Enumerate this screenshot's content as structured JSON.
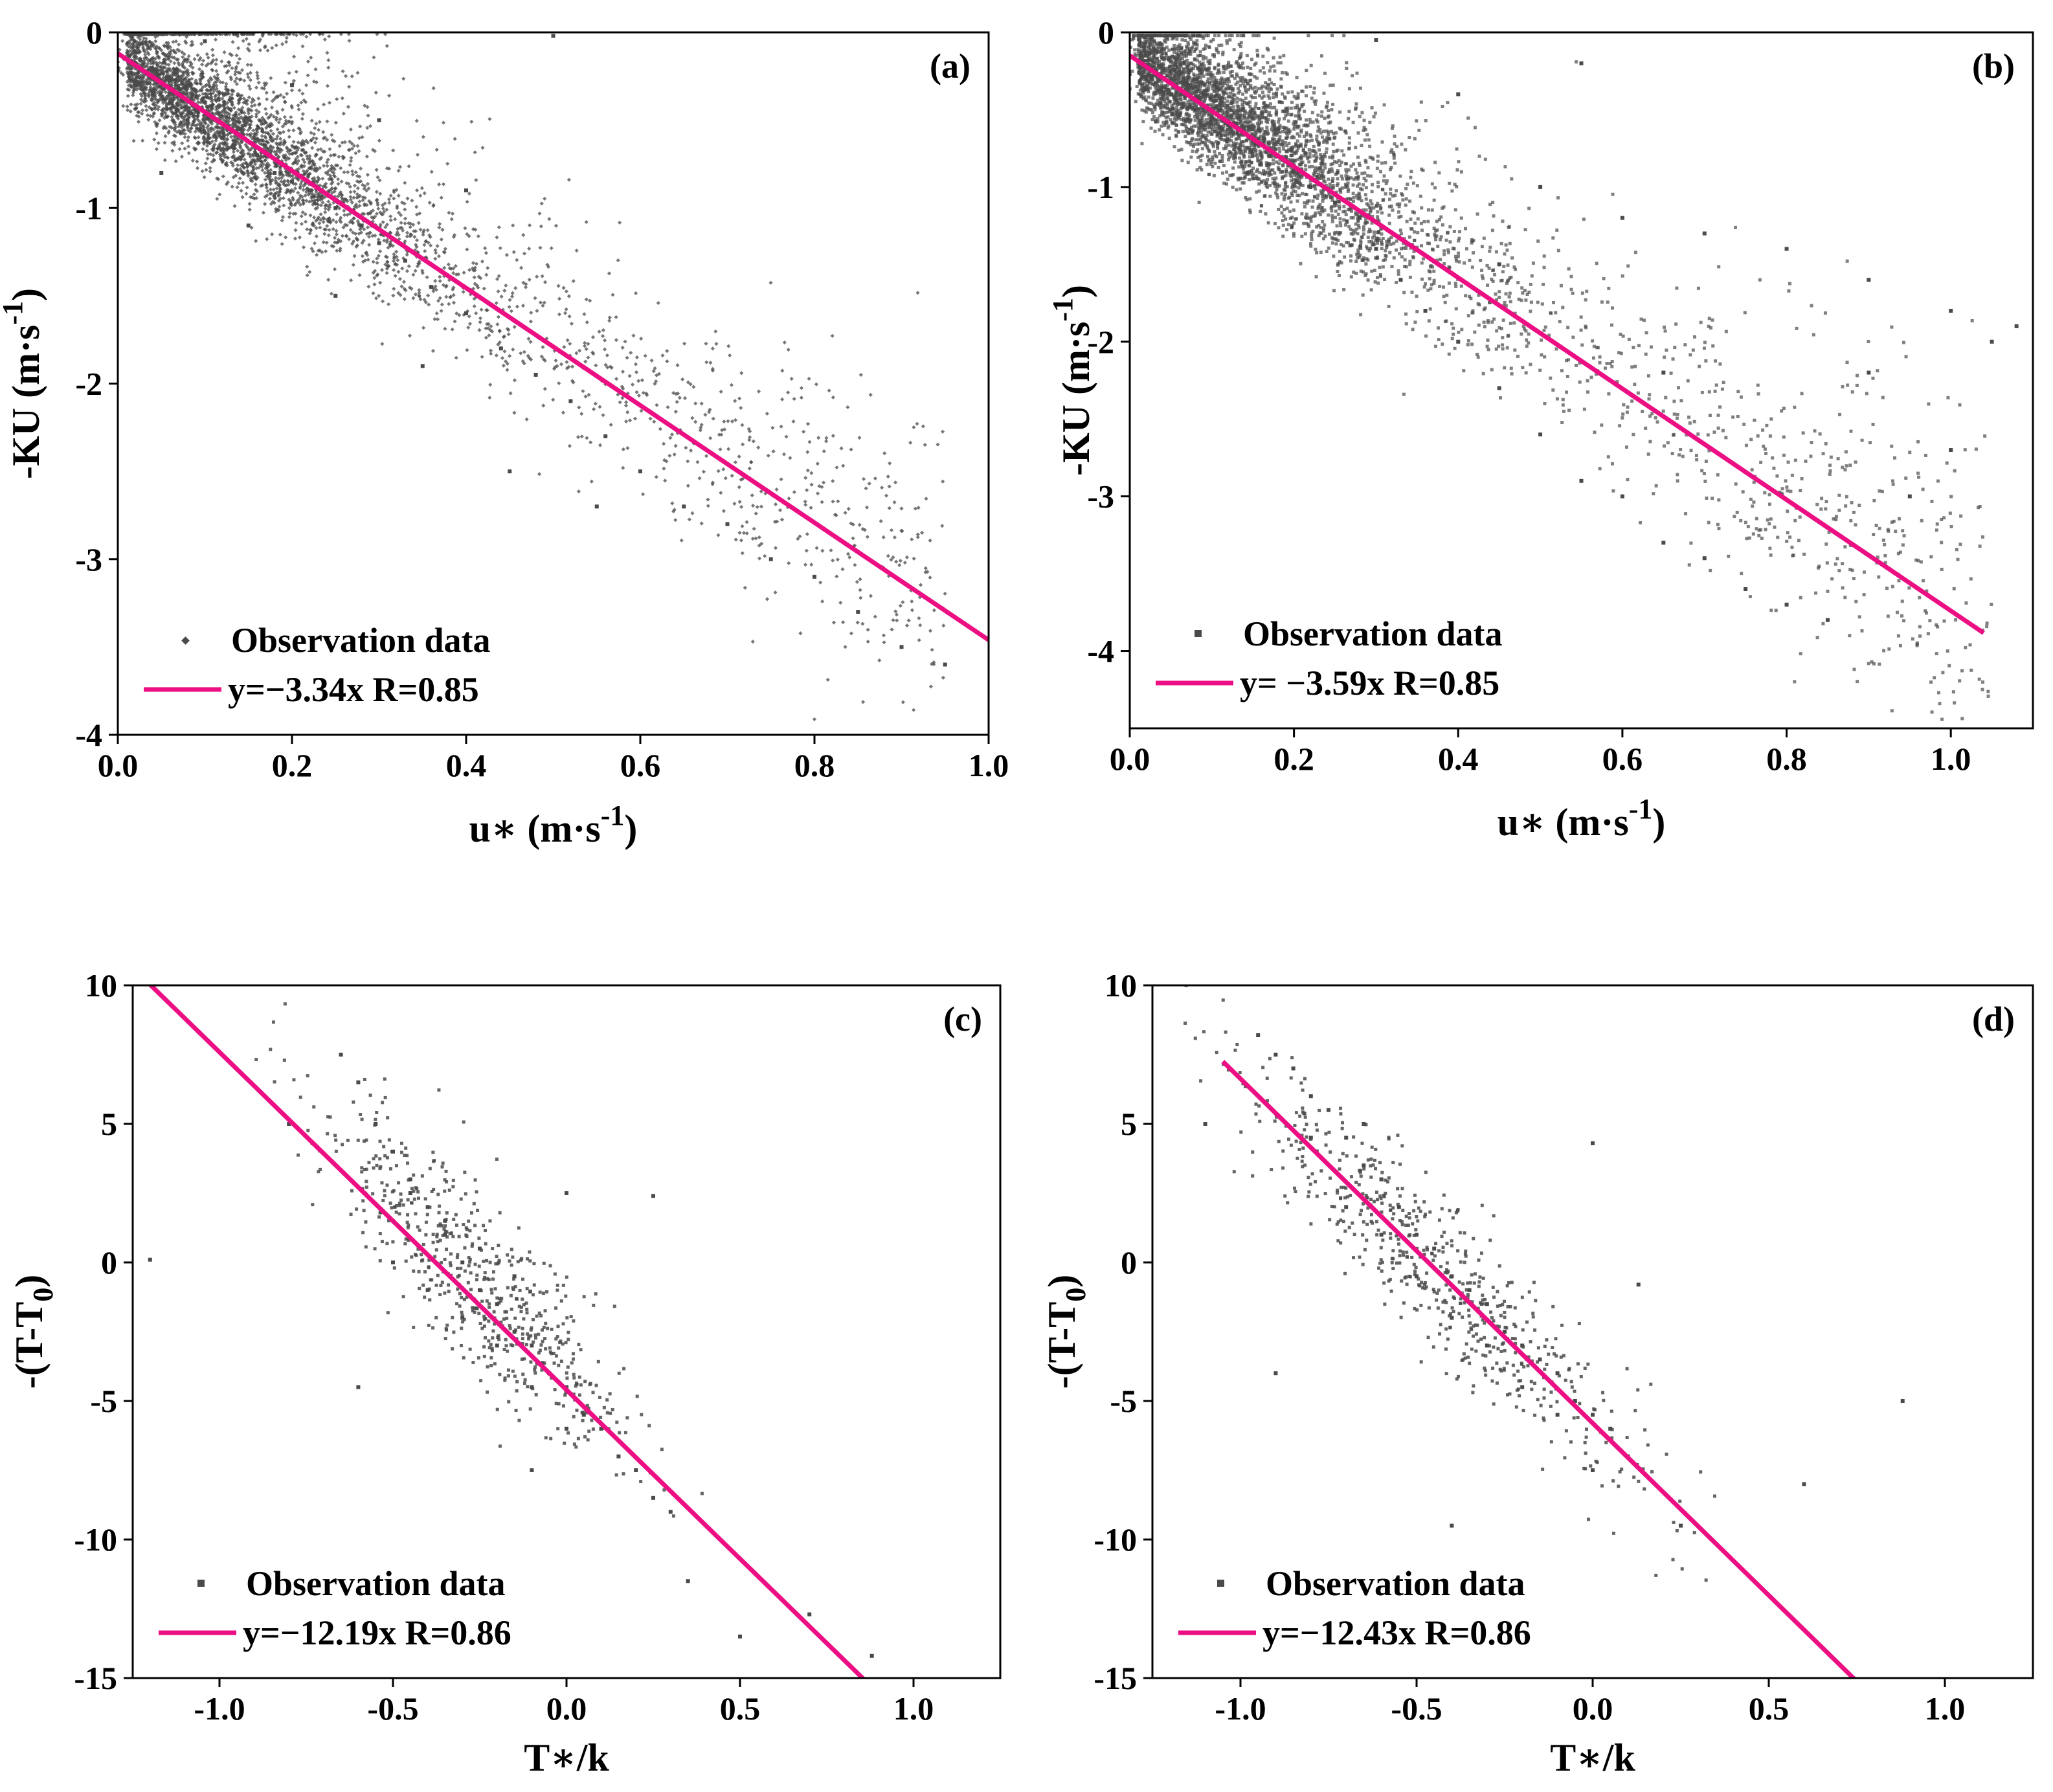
{
  "figure": {
    "colors": {
      "fit": "#ec0f83",
      "points": "#4a4a4a",
      "axis": "#000000"
    }
  },
  "chart_data": [
    {
      "type": "scatter",
      "panel": "(a)",
      "xlim": [
        0.0,
        1.0
      ],
      "ylim": [
        -4,
        0
      ],
      "xticks": [
        0.0,
        0.2,
        0.4,
        0.6,
        0.8,
        1.0
      ],
      "xtick_labels": [
        "0.0",
        "0.2",
        "0.4",
        "0.6",
        "0.8",
        "1.0"
      ],
      "yticks": [
        0,
        -1,
        -2,
        -3,
        -4
      ],
      "ytick_labels": [
        "0",
        "-1",
        "-2",
        "-3",
        "-4"
      ],
      "xlabel": "u∗ (m·s",
      "xlabel_sup": "-1",
      "xlabel_close": ")",
      "ylabel": "-KU (m·s",
      "ylabel_sup": "-1",
      "ylabel_close": ")",
      "legend": [
        "Observation data",
        "y=−3.34x R=0.85"
      ],
      "legend_position": "bottom-left",
      "fit": {
        "slope": -3.34,
        "intercept": -0.12,
        "x_range": [
          0.0,
          1.0
        ],
        "r": 0.85
      },
      "scatter_samples": [
        [
          0.02,
          -0.3
        ],
        [
          0.04,
          -0.35
        ],
        [
          0.06,
          -0.4
        ],
        [
          0.08,
          -0.5
        ],
        [
          0.1,
          -0.45
        ],
        [
          0.12,
          -0.6
        ],
        [
          0.14,
          -0.55
        ],
        [
          0.16,
          -0.7
        ],
        [
          0.18,
          -0.8
        ],
        [
          0.2,
          -0.85
        ],
        [
          0.22,
          -0.9
        ],
        [
          0.25,
          -1.0
        ],
        [
          0.28,
          -1.1
        ],
        [
          0.3,
          -1.2
        ],
        [
          0.33,
          -1.3
        ],
        [
          0.36,
          -1.45
        ],
        [
          0.4,
          -1.6
        ],
        [
          0.44,
          -1.8
        ],
        [
          0.48,
          -1.95
        ],
        [
          0.52,
          -2.1
        ],
        [
          0.56,
          -2.3
        ],
        [
          0.6,
          -2.5
        ],
        [
          0.65,
          -2.7
        ],
        [
          0.7,
          -2.8
        ],
        [
          0.75,
          -3.0
        ],
        [
          0.8,
          -3.1
        ],
        [
          0.85,
          -3.3
        ],
        [
          0.9,
          -3.5
        ],
        [
          0.95,
          -3.6
        ],
        [
          0.1,
          -0.05
        ],
        [
          0.2,
          -0.3
        ],
        [
          0.3,
          -0.5
        ],
        [
          0.4,
          -0.9
        ],
        [
          0.5,
          -0.02
        ],
        [
          0.05,
          -0.8
        ],
        [
          0.15,
          -1.1
        ],
        [
          0.25,
          -1.5
        ],
        [
          0.35,
          -1.9
        ],
        [
          0.45,
          -2.5
        ],
        [
          0.55,
          -2.7
        ]
      ]
    },
    {
      "type": "scatter",
      "panel": "(b)",
      "xlim": [
        0.0,
        1.1
      ],
      "ylim": [
        -4.5,
        0
      ],
      "xticks": [
        0.0,
        0.2,
        0.4,
        0.6,
        0.8,
        1.0
      ],
      "xtick_labels": [
        "0.0",
        "0.2",
        "0.4",
        "0.6",
        "0.8",
        "1.0"
      ],
      "yticks": [
        0,
        -1,
        -2,
        -3,
        -4
      ],
      "ytick_labels": [
        "0",
        "-1",
        "-2",
        "-3",
        "-4"
      ],
      "xlabel": "u∗ (m·s",
      "xlabel_sup": "-1",
      "xlabel_close": ")",
      "ylabel": "-KU (m·s",
      "ylabel_sup": "-1",
      "ylabel_close": ")",
      "legend": [
        "Observation data",
        "y= −3.59x R=0.85"
      ],
      "legend_position": "bottom-left",
      "fit": {
        "slope": -3.59,
        "intercept": -0.15,
        "x_range": [
          0.0,
          1.04
        ],
        "r": 0.85
      },
      "scatter_samples": [
        [
          0.02,
          -0.3
        ],
        [
          0.05,
          -0.4
        ],
        [
          0.08,
          -0.5
        ],
        [
          0.1,
          -0.55
        ],
        [
          0.12,
          -0.6
        ],
        [
          0.15,
          -0.7
        ],
        [
          0.18,
          -0.8
        ],
        [
          0.2,
          -0.9
        ],
        [
          0.22,
          -1.0
        ],
        [
          0.25,
          -1.1
        ],
        [
          0.28,
          -1.2
        ],
        [
          0.3,
          -1.4
        ],
        [
          0.33,
          -1.6
        ],
        [
          0.36,
          -1.8
        ],
        [
          0.4,
          -2.0
        ],
        [
          0.45,
          -2.3
        ],
        [
          0.5,
          -2.6
        ],
        [
          0.55,
          -2.9
        ],
        [
          0.6,
          -3.0
        ],
        [
          0.65,
          -3.3
        ],
        [
          0.7,
          -3.4
        ],
        [
          0.75,
          -3.6
        ],
        [
          0.8,
          -3.7
        ],
        [
          0.85,
          -3.8
        ],
        [
          0.5,
          -1.0
        ],
        [
          0.6,
          -1.2
        ],
        [
          0.7,
          -1.3
        ],
        [
          0.8,
          -1.4
        ],
        [
          0.9,
          -1.6
        ],
        [
          1.0,
          -1.8
        ],
        [
          1.05,
          -2.0
        ],
        [
          1.08,
          -1.9
        ],
        [
          0.4,
          -0.4
        ],
        [
          0.55,
          -0.2
        ],
        [
          0.3,
          -0.05
        ],
        [
          0.9,
          -2.2
        ],
        [
          1.0,
          -2.7
        ],
        [
          0.95,
          -3.0
        ],
        [
          0.65,
          -2.2
        ],
        [
          0.45,
          -1.5
        ]
      ]
    },
    {
      "type": "scatter",
      "panel": "(c)",
      "xlim": [
        -1.25,
        1.25
      ],
      "ylim": [
        -15,
        10
      ],
      "xticks": [
        -1.0,
        -0.5,
        0.0,
        0.5,
        1.0
      ],
      "xtick_labels": [
        "-1.0",
        "-0.5",
        "0.0",
        "0.5",
        "1.0"
      ],
      "yticks": [
        10,
        5,
        0,
        -5,
        -10,
        -15
      ],
      "ytick_labels": [
        "10",
        "5",
        "0",
        "-5",
        "-10",
        "-15"
      ],
      "xlabel": "T∗/k",
      "ylabel": "-(T-T",
      "ylabel_sub": "0",
      "ylabel_close": ")",
      "legend": [
        "Observation data",
        "y=−12.19x R=0.86"
      ],
      "legend_position": "bottom-left",
      "fit": {
        "slope": -12.19,
        "intercept": -4.6,
        "x_range": [
          -1.2,
          0.86
        ],
        "r": 0.86
      },
      "scatter_samples": [
        [
          -0.65,
          7.5
        ],
        [
          -0.6,
          6.5
        ],
        [
          -0.55,
          5.0
        ],
        [
          -0.5,
          4.0
        ],
        [
          -0.45,
          3.0
        ],
        [
          -0.4,
          2.0
        ],
        [
          -0.35,
          1.0
        ],
        [
          -0.3,
          0.0
        ],
        [
          -0.25,
          -1.0
        ],
        [
          -0.2,
          -1.5
        ],
        [
          -0.15,
          -2.5
        ],
        [
          -0.1,
          -3.0
        ],
        [
          -0.05,
          -4.0
        ],
        [
          0.0,
          -4.5
        ],
        [
          0.05,
          -5.5
        ],
        [
          0.1,
          -6.0
        ],
        [
          0.15,
          -7.0
        ],
        [
          0.2,
          -7.5
        ],
        [
          0.25,
          -8.5
        ],
        [
          0.3,
          -9.0
        ],
        [
          -0.5,
          0.0
        ],
        [
          -0.4,
          -1.0
        ],
        [
          -0.3,
          -2.0
        ],
        [
          -0.2,
          -3.0
        ],
        [
          -0.1,
          -4.5
        ],
        [
          0.0,
          -6.0
        ],
        [
          -0.45,
          2.5
        ],
        [
          -0.35,
          1.5
        ],
        [
          -0.25,
          0.5
        ],
        [
          -0.15,
          -0.5
        ],
        [
          0.25,
          2.4
        ],
        [
          -0.6,
          -4.5
        ],
        [
          -0.8,
          5.0
        ],
        [
          0.35,
          -11.5
        ],
        [
          0.5,
          -13.5
        ],
        [
          0.7,
          -12.7
        ],
        [
          0.88,
          -14.2
        ],
        [
          -1.2,
          0.1
        ],
        [
          -0.1,
          -7.5
        ],
        [
          0.0,
          2.5
        ]
      ]
    },
    {
      "type": "scatter",
      "panel": "(d)",
      "xlim": [
        -1.25,
        1.25
      ],
      "ylim": [
        -15,
        10
      ],
      "xticks": [
        -1.0,
        -0.5,
        0.0,
        0.5,
        1.0
      ],
      "xtick_labels": [
        "-1.0",
        "-0.5",
        "0.0",
        "0.5",
        "1.0"
      ],
      "yticks": [
        10,
        5,
        0,
        -5,
        -10,
        -15
      ],
      "ytick_labels": [
        "10",
        "5",
        "0",
        "-5",
        "-10",
        "-15"
      ],
      "xlabel": "T∗/k",
      "ylabel": "-(T-T",
      "ylabel_sub": "0",
      "ylabel_close": ")",
      "legend": [
        "Observation data",
        "y=−12.43x R=0.86"
      ],
      "legend_position": "bottom-left",
      "fit": {
        "slope": -12.43,
        "intercept": -5.8,
        "x_range": [
          -1.05,
          0.75
        ],
        "r": 0.86
      },
      "scatter_samples": [
        [
          -0.95,
          8.2
        ],
        [
          -0.9,
          7.5
        ],
        [
          -0.85,
          7.0
        ],
        [
          -0.8,
          6.0
        ],
        [
          -0.75,
          5.5
        ],
        [
          -0.7,
          4.5
        ],
        [
          -0.65,
          3.5
        ],
        [
          -0.6,
          3.0
        ],
        [
          -0.55,
          2.0
        ],
        [
          -0.5,
          1.0
        ],
        [
          -0.45,
          0.5
        ],
        [
          -0.4,
          -0.5
        ],
        [
          -0.35,
          -1.0
        ],
        [
          -0.3,
          -1.5
        ],
        [
          -0.25,
          -2.5
        ],
        [
          -0.2,
          -3.0
        ],
        [
          -0.15,
          -3.5
        ],
        [
          -0.1,
          -4.0
        ],
        [
          -0.05,
          -5.0
        ],
        [
          0.0,
          -5.5
        ],
        [
          0.05,
          -6.0
        ],
        [
          0.1,
          -7.0
        ],
        [
          -0.7,
          2.0
        ],
        [
          -0.6,
          1.0
        ],
        [
          -0.5,
          -0.5
        ],
        [
          -0.4,
          -2.0
        ],
        [
          -0.3,
          -3.0
        ],
        [
          -0.2,
          -4.5
        ],
        [
          -0.1,
          -5.5
        ],
        [
          0.0,
          -7.5
        ],
        [
          -0.8,
          4.5
        ],
        [
          -0.65,
          5.0
        ],
        [
          -0.9,
          -4.0
        ],
        [
          0.13,
          -0.8
        ],
        [
          0.6,
          -8.0
        ],
        [
          0.88,
          -5.0
        ],
        [
          0.0,
          4.3
        ],
        [
          -0.4,
          -9.5
        ],
        [
          0.25,
          -9.5
        ],
        [
          -1.1,
          5.0
        ]
      ]
    }
  ]
}
